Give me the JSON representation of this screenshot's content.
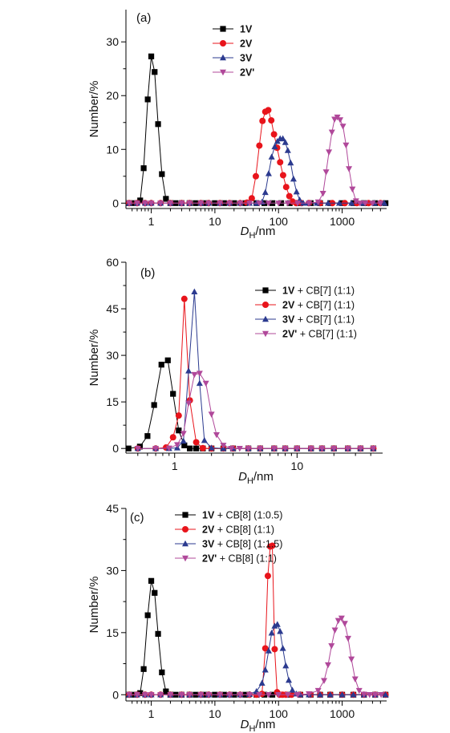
{
  "chart_data": [
    {
      "type": "line",
      "panel_label": "(a)",
      "xscale": "log",
      "xlim": [
        0.4,
        5000
      ],
      "ylim": [
        -1,
        36
      ],
      "xticks": [
        1,
        10,
        100,
        1000
      ],
      "xtick_labels": [
        "1",
        "10",
        "100",
        "1000"
      ],
      "yticks": [
        0,
        10,
        20,
        30
      ],
      "ytick_labels": [
        "0",
        "10",
        "20",
        "30"
      ],
      "xlabel_main": "D",
      "xlabel_sub": "H",
      "xlabel_unit": "/nm",
      "ylabel": "Number/%",
      "legend_position": "top",
      "series": [
        {
          "name": "1V",
          "name_suffix": "",
          "color": "#000000",
          "marker": "square",
          "x": [
            0.45,
            0.55,
            0.67,
            0.76,
            0.88,
            1.0,
            1.13,
            1.28,
            1.47,
            1.7,
            2.0,
            2.4,
            3,
            4,
            5,
            7,
            10,
            14,
            20,
            30,
            45,
            60,
            80,
            110,
            150,
            220,
            320,
            450,
            650,
            1000,
            1500,
            2200,
            3300,
            4800
          ],
          "y": [
            0,
            0,
            0.5,
            6.5,
            19.3,
            27.3,
            24.4,
            14.7,
            5.4,
            0.8,
            0,
            0,
            0,
            0,
            0,
            0,
            0,
            0,
            0,
            0,
            0,
            0,
            0,
            0,
            0,
            0,
            0,
            0,
            0,
            0,
            0,
            0,
            0,
            0
          ]
        },
        {
          "name": "2V",
          "name_suffix": "",
          "color": "#e8141b",
          "marker": "circle",
          "x": [
            0.45,
            0.6,
            0.8,
            1.0,
            1.4,
            2,
            3,
            4,
            6,
            8,
            12,
            17,
            25,
            32,
            38,
            44,
            50,
            56,
            62,
            69,
            77,
            85,
            95,
            106,
            118,
            132,
            148,
            166,
            190,
            230,
            300,
            450,
            700,
            1100,
            1700,
            2600,
            4000
          ],
          "y": [
            0,
            0,
            0,
            0,
            0,
            0,
            0,
            0,
            0,
            0,
            0,
            0,
            0,
            0.1,
            0.9,
            5.0,
            10.7,
            15.3,
            17.0,
            17.3,
            15.4,
            12.8,
            10.3,
            7.6,
            5.2,
            3.0,
            1.3,
            0.3,
            0,
            0,
            0,
            0,
            0,
            0,
            0,
            0,
            0
          ]
        },
        {
          "name": "3V",
          "name_suffix": "",
          "color": "#2b3a8f",
          "marker": "triangle-up",
          "x": [
            0.45,
            0.6,
            0.8,
            1.0,
            1.4,
            2,
            3,
            4,
            6,
            8,
            12,
            17,
            25,
            35,
            45,
            55,
            62,
            70,
            78,
            87,
            96,
            106,
            117,
            128,
            140,
            155,
            172,
            192,
            215,
            245,
            290,
            400,
            600,
            900,
            1400,
            2100,
            3200,
            4600
          ],
          "y": [
            0,
            0,
            0,
            0,
            0,
            0,
            0,
            0,
            0,
            0,
            0,
            0,
            0,
            0,
            0,
            0.2,
            2.0,
            5.5,
            8.6,
            10.5,
            11.5,
            12.0,
            12.0,
            11.3,
            9.8,
            7.5,
            4.5,
            2.1,
            0.6,
            0,
            0,
            0,
            0,
            0,
            0,
            0,
            0,
            0
          ]
        },
        {
          "name": "2V",
          "name_suffix": "'",
          "color": "#b0489a",
          "marker": "triangle-down",
          "x": [
            0.45,
            0.6,
            0.8,
            1.0,
            1.4,
            2,
            3,
            4,
            6,
            8,
            12,
            17,
            25,
            35,
            50,
            70,
            100,
            140,
            200,
            300,
            420,
            500,
            560,
            620,
            690,
            760,
            840,
            930,
            1030,
            1150,
            1280,
            1450,
            1650,
            1900,
            2300,
            3000,
            4000
          ],
          "y": [
            0,
            0,
            0,
            0,
            0,
            0,
            0,
            0,
            0,
            0,
            0,
            0,
            0,
            0,
            0,
            0,
            0,
            0,
            0,
            0,
            0.2,
            1.8,
            5.8,
            9.5,
            13.2,
            15.6,
            16.0,
            15.5,
            14.3,
            10.8,
            6.4,
            2.6,
            0.4,
            0,
            0,
            0,
            0
          ]
        }
      ]
    },
    {
      "type": "line",
      "panel_label": "(b)",
      "xscale": "log",
      "xlim": [
        0.4,
        50
      ],
      "ylim": [
        -1.5,
        60
      ],
      "xticks": [
        1,
        10
      ],
      "xtick_labels": [
        "1",
        "10"
      ],
      "yticks": [
        0,
        15,
        30,
        45,
        60
      ],
      "ytick_labels": [
        "0",
        "15",
        "30",
        "45",
        "60"
      ],
      "xlabel_main": "D",
      "xlabel_sub": "H",
      "xlabel_unit": "/nm",
      "ylabel": "Number/%",
      "legend_position": "top-right",
      "series": [
        {
          "name": "1V",
          "name_suffix": " + CB[7] (1:1)",
          "color": "#000000",
          "marker": "square",
          "x": [
            0.42,
            0.52,
            0.6,
            0.68,
            0.78,
            0.88,
            0.97,
            1.08,
            1.2,
            1.33,
            1.5,
            1.7,
            2.0,
            2.5,
            3,
            4,
            5,
            6.5,
            8,
            10,
            13,
            16,
            20,
            26,
            33,
            42
          ],
          "y": [
            0,
            0.6,
            4.0,
            14.0,
            27.0,
            28.4,
            17.6,
            5.8,
            1.0,
            0,
            0,
            0,
            0,
            0,
            0,
            0,
            0,
            0,
            0,
            0,
            0,
            0,
            0,
            0,
            0,
            0
          ]
        },
        {
          "name": "2V",
          "name_suffix": " + CB[7] (1:1)",
          "color": "#e8141b",
          "marker": "circle",
          "x": [
            0.5,
            0.7,
            0.85,
            0.97,
            1.08,
            1.2,
            1.33,
            1.5,
            1.7,
            2.0,
            2.5,
            3,
            4,
            5,
            6.5,
            8,
            10,
            13,
            16,
            20,
            26,
            33,
            42
          ],
          "y": [
            0,
            0,
            0.3,
            3.6,
            10.6,
            48.2,
            15.5,
            2.0,
            0.1,
            0,
            0,
            0,
            0,
            0,
            0,
            0,
            0,
            0,
            0,
            0,
            0,
            0,
            0
          ]
        },
        {
          "name": "3V",
          "name_suffix": " + CB[7] (1:1)",
          "color": "#2b3a8f",
          "marker": "triangle-up",
          "x": [
            0.5,
            0.7,
            0.9,
            1.05,
            1.18,
            1.3,
            1.45,
            1.6,
            1.75,
            2.0,
            2.5,
            3,
            4,
            5,
            6.5,
            8,
            10,
            13,
            16,
            20,
            26,
            33,
            42
          ],
          "y": [
            0,
            0,
            0,
            0.2,
            2.4,
            25.0,
            50.5,
            21.0,
            2.6,
            0.2,
            0,
            0,
            0,
            0,
            0,
            0,
            0,
            0,
            0,
            0,
            0,
            0,
            0
          ]
        },
        {
          "name": "2V",
          "name_suffix": "' + CB[7] (1:1)",
          "color": "#b0489a",
          "marker": "triangle-down",
          "x": [
            0.5,
            0.7,
            0.9,
            1.05,
            1.18,
            1.3,
            1.45,
            1.6,
            1.8,
            2.0,
            2.2,
            2.5,
            2.9,
            3.4,
            4,
            5,
            6.5,
            8,
            10,
            13,
            16,
            20,
            26,
            33,
            42
          ],
          "y": [
            0,
            0,
            0.1,
            1.2,
            4.8,
            14.6,
            23.8,
            24.2,
            21.0,
            11.0,
            4.4,
            1.0,
            0,
            0,
            0,
            0,
            0,
            0,
            0,
            0,
            0,
            0,
            0,
            0,
            0
          ]
        }
      ]
    },
    {
      "type": "line",
      "panel_label": "(c)",
      "xscale": "log",
      "xlim": [
        0.4,
        5000
      ],
      "ylim": [
        -1.5,
        45
      ],
      "xticks": [
        1,
        10,
        100,
        1000
      ],
      "xtick_labels": [
        "1",
        "10",
        "100",
        "1000"
      ],
      "yticks": [
        0,
        15,
        30,
        45
      ],
      "ytick_labels": [
        "0",
        "15",
        "30",
        "45"
      ],
      "xlabel_main": "D",
      "xlabel_sub": "H",
      "xlabel_unit": "/nm",
      "ylabel": "Number/%",
      "legend_position": "top",
      "series": [
        {
          "name": "1V",
          "name_suffix": " + CB[8] (1:0.5)",
          "color": "#000000",
          "marker": "square",
          "x": [
            0.45,
            0.55,
            0.67,
            0.76,
            0.88,
            1.0,
            1.13,
            1.28,
            1.47,
            1.7,
            2.0,
            2.4,
            3,
            4,
            5,
            7,
            10,
            14,
            20,
            30,
            45,
            60,
            80,
            110,
            150,
            220,
            320,
            450,
            650,
            1000,
            1500,
            2200,
            3300,
            4800
          ],
          "y": [
            0,
            0,
            0.4,
            6.2,
            19.2,
            27.5,
            24.6,
            14.7,
            5.4,
            0.8,
            0,
            0,
            0,
            0,
            0,
            0,
            0,
            0,
            0,
            0,
            0,
            0,
            0,
            0,
            0,
            0,
            0,
            0,
            0,
            0,
            0,
            0,
            0,
            0
          ]
        },
        {
          "name": "2V",
          "name_suffix": " + CB[8] (1:1)",
          "color": "#e8141b",
          "marker": "circle",
          "x": [
            0.45,
            0.6,
            0.8,
            1.0,
            1.4,
            2,
            3,
            4,
            6,
            8,
            12,
            17,
            25,
            35,
            45,
            55,
            62,
            68,
            74,
            80,
            87,
            95,
            104,
            115,
            130,
            160,
            220,
            320,
            450,
            650,
            1000,
            1500,
            2200,
            3300,
            4800
          ],
          "y": [
            0,
            0,
            0,
            0,
            0,
            0,
            0,
            0,
            0,
            0,
            0,
            0,
            0,
            0,
            0,
            0.2,
            11.2,
            28.7,
            35.8,
            36.0,
            11.0,
            0.6,
            0,
            0,
            0,
            0,
            0,
            0,
            0,
            0,
            0,
            0,
            0,
            0,
            0
          ]
        },
        {
          "name": "3V",
          "name_suffix": " + CB[8] (1:1.5)",
          "color": "#2b3a8f",
          "marker": "triangle-up",
          "x": [
            0.45,
            0.6,
            0.8,
            1.0,
            1.4,
            2,
            3,
            4,
            6,
            8,
            12,
            17,
            25,
            35,
            45,
            55,
            62,
            70,
            78,
            87,
            96,
            106,
            117,
            130,
            145,
            165,
            190,
            220,
            300,
            450,
            650,
            1000,
            1500,
            2200,
            3300,
            4800
          ],
          "y": [
            0,
            0,
            0,
            0,
            0,
            0,
            0,
            0,
            0,
            0,
            0,
            0,
            0,
            0.1,
            0.8,
            2.8,
            6.0,
            10.6,
            14.9,
            16.6,
            17.0,
            15.3,
            11.2,
            7.0,
            3.5,
            1.1,
            0.2,
            0,
            0,
            0,
            0,
            0,
            0,
            0,
            0,
            0
          ]
        },
        {
          "name": "2V",
          "name_suffix": "' + CB[8] (1:1)",
          "color": "#b0489a",
          "marker": "triangle-down",
          "x": [
            0.45,
            0.6,
            0.8,
            1.0,
            1.4,
            2,
            3,
            4,
            6,
            8,
            12,
            17,
            25,
            35,
            50,
            70,
            100,
            140,
            200,
            300,
            420,
            520,
            600,
            680,
            770,
            870,
            980,
            1100,
            1240,
            1400,
            1600,
            1850,
            2200,
            2700,
            3300,
            4100
          ],
          "y": [
            0,
            0,
            0,
            0,
            0,
            0,
            0,
            0,
            0,
            0,
            0,
            0,
            0,
            0,
            0,
            0,
            0,
            0,
            0,
            0.2,
            1.0,
            3.4,
            7.2,
            11.8,
            15.6,
            17.9,
            18.5,
            17.2,
            13.6,
            8.6,
            3.8,
            1.0,
            0.1,
            0,
            0,
            0
          ]
        }
      ]
    }
  ]
}
